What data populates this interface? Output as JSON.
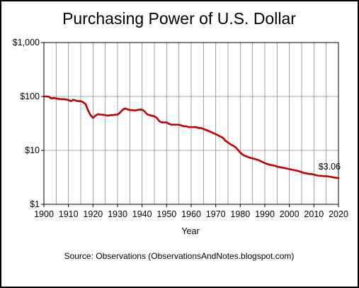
{
  "chart_data": {
    "type": "line",
    "title": "Purchasing Power of U.S. Dollar",
    "xlabel": "Year",
    "ylabel": "",
    "source": "Source: Observations (ObservationsAndNotes.blogspot.com)",
    "xlim": [
      1900,
      2020
    ],
    "ylim": [
      1,
      1000
    ],
    "yscale": "log",
    "grid": true,
    "x_ticks": [
      1900,
      1910,
      1920,
      1930,
      1940,
      1950,
      1960,
      1970,
      1980,
      1990,
      2000,
      2010,
      2020
    ],
    "x_tick_labels": [
      "1900",
      "1910",
      "1920",
      "1930",
      "1940",
      "1950",
      "1960",
      "1970",
      "1980",
      "1990",
      "2000",
      "2010",
      "2020"
    ],
    "y_ticks": [
      1,
      10,
      100,
      1000
    ],
    "y_tick_labels": [
      "$1",
      "$10",
      "$100",
      "$1,000"
    ],
    "line_color": "#c00000",
    "series": [
      {
        "x": [
          1900,
          1901,
          1902,
          1903,
          1904,
          1905,
          1906,
          1907,
          1908,
          1909,
          1910,
          1911,
          1912,
          1913,
          1914,
          1915,
          1916,
          1917,
          1918,
          1919,
          1920,
          1921,
          1922,
          1923,
          1924,
          1925,
          1926,
          1927,
          1928,
          1929,
          1930,
          1931,
          1932,
          1933,
          1934,
          1935,
          1936,
          1937,
          1938,
          1939,
          1940,
          1941,
          1942,
          1943,
          1944,
          1945,
          1946,
          1947,
          1948,
          1949,
          1950,
          1951,
          1952,
          1953,
          1954,
          1955,
          1956,
          1957,
          1958,
          1959,
          1960,
          1961,
          1962,
          1963,
          1964,
          1965,
          1966,
          1967,
          1968,
          1969,
          1970,
          1971,
          1972,
          1973,
          1974,
          1975,
          1976,
          1977,
          1978,
          1979,
          1980,
          1981,
          1982,
          1983,
          1984,
          1985,
          1986,
          1987,
          1988,
          1989,
          1990,
          1991,
          1992,
          1993,
          1994,
          1995,
          1996,
          1997,
          1998,
          1999,
          2000,
          2001,
          2002,
          2003,
          2004,
          2005,
          2006,
          2007,
          2008,
          2009,
          2010,
          2011,
          2012,
          2013,
          2014,
          2015,
          2016,
          2017,
          2018,
          2019,
          2020
        ],
        "values": [
          100,
          100,
          99,
          92,
          94,
          92,
          90,
          89,
          89,
          88,
          86,
          82,
          87,
          84,
          82,
          82,
          78,
          72,
          55,
          45,
          40,
          44,
          47,
          46,
          46,
          45,
          44,
          45,
          45,
          46,
          46,
          50,
          56,
          60,
          58,
          56,
          56,
          55,
          56,
          57,
          57,
          53,
          47,
          45,
          44,
          43,
          40,
          35,
          33,
          33,
          33,
          31,
          30,
          30,
          30,
          30,
          29,
          28,
          28,
          27,
          27,
          27,
          27,
          26,
          26,
          25,
          24,
          23,
          22,
          21,
          20,
          19,
          18,
          17,
          15,
          14,
          13,
          12.3,
          11.5,
          10.3,
          9.1,
          8.3,
          7.9,
          7.6,
          7.3,
          7.1,
          6.9,
          6.7,
          6.4,
          6.1,
          5.8,
          5.6,
          5.4,
          5.3,
          5.2,
          5.0,
          4.9,
          4.8,
          4.7,
          4.6,
          4.5,
          4.4,
          4.3,
          4.2,
          4.1,
          3.95,
          3.8,
          3.75,
          3.65,
          3.65,
          3.55,
          3.45,
          3.4,
          3.37,
          3.33,
          3.32,
          3.28,
          3.22,
          3.15,
          3.1,
          3.06
        ]
      }
    ],
    "annotations": [
      {
        "text": "$3.06",
        "x": 2020,
        "y": 3.06
      }
    ]
  }
}
